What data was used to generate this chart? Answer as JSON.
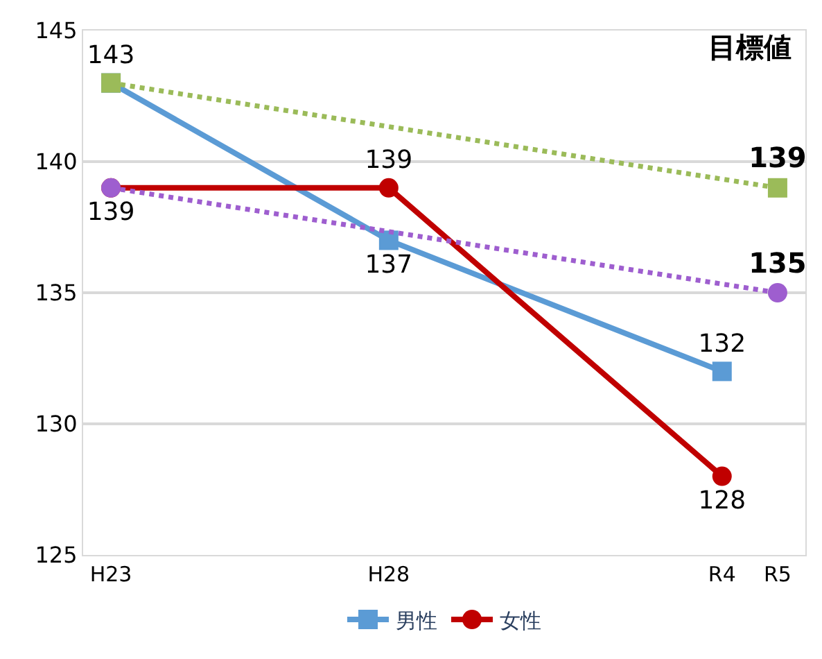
{
  "chart_data": {
    "type": "line",
    "categories": [
      "H23",
      null,
      null,
      null,
      null,
      "H28",
      null,
      null,
      null,
      null,
      null,
      "R4",
      "R5"
    ],
    "ylim": [
      125,
      145
    ],
    "yticks": [
      125,
      130,
      135,
      140,
      145
    ],
    "grid": "y",
    "legend": "bottom",
    "data_labels": true,
    "series": [
      {
        "name": "男性",
        "color": "#5b9bd5",
        "values": [
          143,
          null,
          null,
          null,
          null,
          137,
          null,
          null,
          null,
          null,
          null,
          132,
          null
        ],
        "marker": "square",
        "line_style": "solid"
      },
      {
        "name": "女性",
        "color": "#c00000",
        "values": [
          139,
          null,
          null,
          null,
          null,
          139,
          null,
          null,
          null,
          null,
          null,
          128,
          null
        ],
        "marker": "circle",
        "line_style": "solid"
      },
      {
        "color": "#9bbb59",
        "values": [
          143,
          null,
          null,
          null,
          null,
          null,
          null,
          null,
          null,
          null,
          null,
          null,
          139
        ],
        "value_labels": [
          null,
          null,
          null,
          null,
          null,
          null,
          null,
          null,
          null,
          null,
          null,
          null,
          "139"
        ],
        "marker": "square",
        "line_style": "dotted"
      },
      {
        "color": "#9e5ecf",
        "values": [
          139,
          null,
          null,
          null,
          null,
          null,
          null,
          null,
          null,
          null,
          null,
          null,
          135
        ],
        "value_labels": [
          null,
          null,
          null,
          null,
          null,
          null,
          null,
          null,
          null,
          null,
          null,
          null,
          "135"
        ],
        "marker": "circle",
        "line_style": "dotted"
      }
    ],
    "annotations": [
      "目標値"
    ]
  }
}
